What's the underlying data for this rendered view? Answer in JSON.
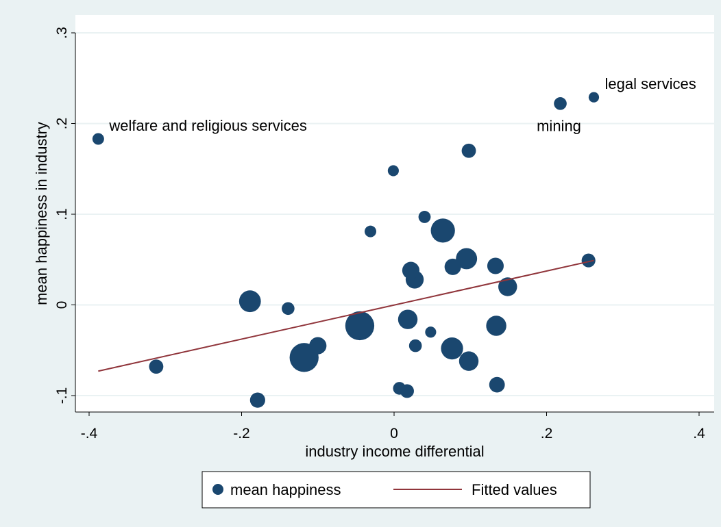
{
  "chart_data": {
    "type": "scatter",
    "title": "",
    "xlabel": "industry income differential",
    "ylabel": "mean happiness in industry",
    "xlim": [
      -0.4,
      0.4
    ],
    "ylim": [
      -0.1,
      0.3
    ],
    "x_ticks": [
      -0.4,
      -0.2,
      0,
      0.2,
      0.4
    ],
    "x_tick_labels": [
      "-.4",
      "-.2",
      "0",
      ".2",
      ".4"
    ],
    "y_ticks": [
      -0.1,
      0,
      0.1,
      0.2,
      0.3
    ],
    "y_tick_labels": [
      "-.1",
      "0",
      ".1",
      ".2",
      ".3"
    ],
    "grid": "horizontal",
    "series": [
      {
        "name": "mean happiness",
        "kind": "scatter",
        "color": "#1a476f",
        "points": [
          {
            "x": -0.388,
            "y": 0.183,
            "size": 1.0
          },
          {
            "x": -0.312,
            "y": -0.068,
            "size": 1.5
          },
          {
            "x": -0.189,
            "y": 0.004,
            "size": 3.5
          },
          {
            "x": -0.179,
            "y": -0.105,
            "size": 1.7
          },
          {
            "x": -0.139,
            "y": -0.004,
            "size": 1.2
          },
          {
            "x": -0.1,
            "y": -0.045,
            "size": 2.2
          },
          {
            "x": -0.118,
            "y": -0.058,
            "size": 6.2
          },
          {
            "x": -0.045,
            "y": -0.023,
            "size": 6.2
          },
          {
            "x": -0.031,
            "y": 0.081,
            "size": 1.0
          },
          {
            "x": -0.001,
            "y": 0.148,
            "size": 0.9
          },
          {
            "x": 0.007,
            "y": -0.092,
            "size": 1.2
          },
          {
            "x": 0.017,
            "y": -0.095,
            "size": 1.4
          },
          {
            "x": 0.018,
            "y": -0.016,
            "size": 2.8
          },
          {
            "x": 0.022,
            "y": 0.038,
            "size": 2.2
          },
          {
            "x": 0.027,
            "y": 0.028,
            "size": 2.4
          },
          {
            "x": 0.028,
            "y": -0.045,
            "size": 1.2
          },
          {
            "x": 0.04,
            "y": 0.097,
            "size": 1.1
          },
          {
            "x": 0.048,
            "y": -0.03,
            "size": 0.9
          },
          {
            "x": 0.064,
            "y": 0.082,
            "size": 4.3
          },
          {
            "x": 0.077,
            "y": 0.042,
            "size": 2.0
          },
          {
            "x": 0.095,
            "y": 0.051,
            "size": 3.3
          },
          {
            "x": 0.076,
            "y": -0.048,
            "size": 3.6
          },
          {
            "x": 0.098,
            "y": 0.17,
            "size": 1.5
          },
          {
            "x": 0.098,
            "y": -0.062,
            "size": 2.8
          },
          {
            "x": 0.133,
            "y": 0.043,
            "size": 2.0
          },
          {
            "x": 0.134,
            "y": -0.023,
            "size": 3.0
          },
          {
            "x": 0.135,
            "y": -0.088,
            "size": 1.8
          },
          {
            "x": 0.149,
            "y": 0.02,
            "size": 2.6
          },
          {
            "x": 0.218,
            "y": 0.222,
            "size": 1.2
          },
          {
            "x": 0.255,
            "y": 0.049,
            "size": 1.4
          },
          {
            "x": 0.262,
            "y": 0.229,
            "size": 0.8
          }
        ]
      },
      {
        "name": "Fitted values",
        "kind": "line",
        "color": "#90353b",
        "x": [
          -0.388,
          0.262
        ],
        "y": [
          -0.073,
          0.049
        ]
      }
    ],
    "annotations": [
      {
        "text": "welfare and religious services",
        "x": -0.388,
        "y": 0.183,
        "position": "upper-right"
      },
      {
        "text": "legal services",
        "x": 0.262,
        "y": 0.229,
        "position": "upper-right"
      },
      {
        "text": "mining",
        "x": 0.218,
        "y": 0.222,
        "position": "below"
      }
    ],
    "legend": {
      "placement": "bottom",
      "entries": [
        "mean happiness",
        "Fitted values"
      ]
    },
    "colors": {
      "background": "#eaf2f3",
      "plot_background": "#ffffff",
      "marker": "#1a476f",
      "fit_line": "#90353b",
      "grid": "#eaf2f3"
    }
  }
}
